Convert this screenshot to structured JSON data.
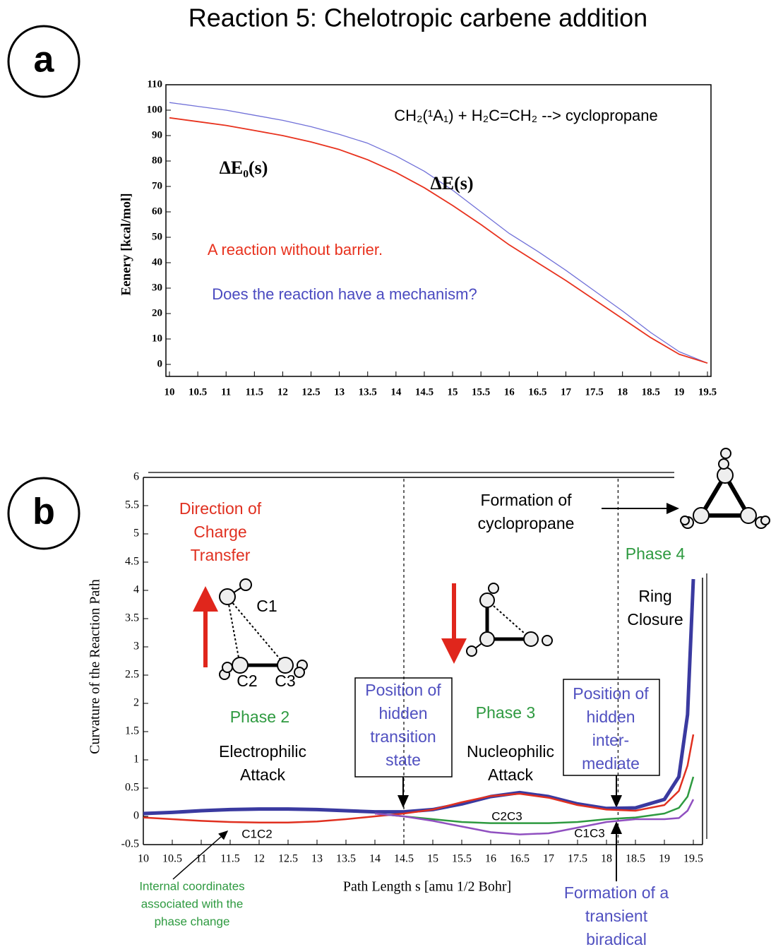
{
  "chart_data": [
    {
      "type": "line",
      "title": "Reaction 5: Chelotropic carbene addition",
      "panel": "a",
      "y_label": "Eenery [kcal/mol]",
      "x": [
        10,
        10.5,
        11,
        11.5,
        12,
        12.5,
        13,
        13.5,
        14,
        14.5,
        15,
        15.5,
        16,
        16.5,
        17,
        17.5,
        18,
        18.5,
        19,
        19.5
      ],
      "series": [
        {
          "name": "ΔE(s)",
          "color": "#7070d8",
          "values": [
            103,
            101.5,
            100,
            98,
            96,
            93.5,
            90.5,
            87,
            82,
            76,
            68.5,
            60,
            51.5,
            44.5,
            37,
            29,
            21,
            12.5,
            5,
            0.5
          ]
        },
        {
          "name": "ΔE₀(s)",
          "color": "#e8321e",
          "values": [
            97,
            95.5,
            94,
            92,
            90,
            87.5,
            84.5,
            80.5,
            75.5,
            69.5,
            62.5,
            55,
            47,
            40,
            33,
            25.5,
            18,
            10.5,
            4,
            0.5
          ]
        }
      ],
      "xlim": [
        10,
        19.5
      ],
      "ylim": [
        0,
        110
      ],
      "xticks": [
        10,
        10.5,
        11,
        11.5,
        12,
        12.5,
        13,
        13.5,
        14,
        14.5,
        15,
        15.5,
        16,
        16.5,
        17,
        17.5,
        18,
        18.5,
        19,
        19.5
      ],
      "yticks": [
        0,
        10,
        20,
        30,
        40,
        50,
        60,
        70,
        80,
        90,
        100,
        110
      ],
      "annotations": [
        {
          "lines": [
            "CH₂(¹A₁) + H₂C=CH₂ --> cyclopropane"
          ],
          "color": "#000000"
        },
        {
          "lines": [
            "A reaction without barrier."
          ],
          "color": "#e8321e"
        },
        {
          "lines": [
            "Does the reaction have a mechanism?"
          ],
          "color": "#4a4ac0"
        }
      ]
    },
    {
      "type": "line",
      "panel": "b",
      "x_label": "Path Length s [amu 1/2 Bohr]",
      "y_label": "Curvature of the Reaction Path",
      "x": [
        10,
        10.5,
        11,
        11.5,
        12,
        12.5,
        13,
        13.5,
        14,
        14.5,
        15,
        15.5,
        16,
        16.5,
        17,
        17.5,
        18,
        18.5,
        19,
        19.25,
        19.4,
        19.5
      ],
      "series": [
        {
          "color": "#3a3aa0",
          "values": [
            0.05,
            0.07,
            0.1,
            0.12,
            0.13,
            0.13,
            0.12,
            0.1,
            0.08,
            0.08,
            0.12,
            0.22,
            0.35,
            0.42,
            0.35,
            0.22,
            0.14,
            0.15,
            0.3,
            0.7,
            1.8,
            4.2
          ]
        },
        {
          "name": "C1C2",
          "color": "#e03020",
          "values": [
            -0.02,
            -0.05,
            -0.08,
            -0.1,
            -0.11,
            -0.11,
            -0.09,
            -0.05,
            0,
            0.05,
            0.12,
            0.25,
            0.36,
            0.4,
            0.33,
            0.2,
            0.12,
            0.1,
            0.2,
            0.45,
            0.9,
            1.45
          ]
        },
        {
          "name": "C2C3",
          "color": "#2e9a40",
          "values": [
            null,
            null,
            null,
            null,
            null,
            null,
            null,
            null,
            0.05,
            0,
            -0.05,
            -0.1,
            -0.12,
            -0.12,
            -0.12,
            -0.1,
            -0.05,
            -0.02,
            0.05,
            0.15,
            0.35,
            0.7
          ]
        },
        {
          "name": "C1C3",
          "color": "#9050c0",
          "values": [
            null,
            null,
            null,
            null,
            null,
            null,
            null,
            null,
            0.05,
            0,
            -0.08,
            -0.18,
            -0.28,
            -0.32,
            -0.3,
            -0.2,
            -0.1,
            -0.05,
            -0.05,
            -0.03,
            0.1,
            0.3
          ]
        }
      ],
      "xlim": [
        10,
        19.5
      ],
      "ylim": [
        -0.5,
        6
      ],
      "xticks": [
        10,
        10.5,
        11,
        11.5,
        12,
        12.5,
        13,
        13.5,
        14,
        14.5,
        15,
        15.5,
        16,
        16.5,
        17,
        17.5,
        18,
        18.5,
        19,
        19.5
      ],
      "yticks": [
        -0.5,
        0,
        0.5,
        1,
        1.5,
        2,
        2.5,
        3,
        3.5,
        4,
        4.5,
        5,
        5.5,
        6
      ],
      "vlines": [
        14.5,
        18.2
      ],
      "annotations": [
        {
          "lines": [
            "Direction of",
            "Charge",
            "Transfer"
          ],
          "color": "#e03020"
        },
        {
          "lines": [
            "Formation of",
            "cyclopropane"
          ],
          "color": "#000000"
        },
        {
          "lines": [
            "Phase 4"
          ],
          "color": "#2e9a40"
        },
        {
          "lines": [
            "Ring",
            "Closure"
          ],
          "color": "#000000"
        },
        {
          "lines": [
            "Phase 2"
          ],
          "color": "#2e9a40"
        },
        {
          "lines": [
            "Electrophilic",
            "Attack"
          ],
          "color": "#000000"
        },
        {
          "lines": [
            "Position of",
            "hidden",
            "transition",
            "state"
          ],
          "color": "#5050c0"
        },
        {
          "lines": [
            "Phase 3"
          ],
          "color": "#2e9a40"
        },
        {
          "lines": [
            "Nucleophilic",
            "Attack"
          ],
          "color": "#000000"
        },
        {
          "lines": [
            "Position of",
            "hidden",
            "inter-",
            "mediate"
          ],
          "color": "#5050c0"
        },
        {
          "lines": [
            "Internal coordinates",
            "associated with the",
            "phase change"
          ],
          "color": "#2e9a40"
        },
        {
          "lines": [
            "Formation of a",
            "transient",
            "biradical"
          ],
          "color": "#5050c0"
        },
        {
          "lines": [
            "C1"
          ],
          "color": "#000000"
        },
        {
          "lines": [
            "C2"
          ],
          "color": "#000000"
        },
        {
          "lines": [
            "C3"
          ],
          "color": "#000000"
        }
      ]
    }
  ]
}
